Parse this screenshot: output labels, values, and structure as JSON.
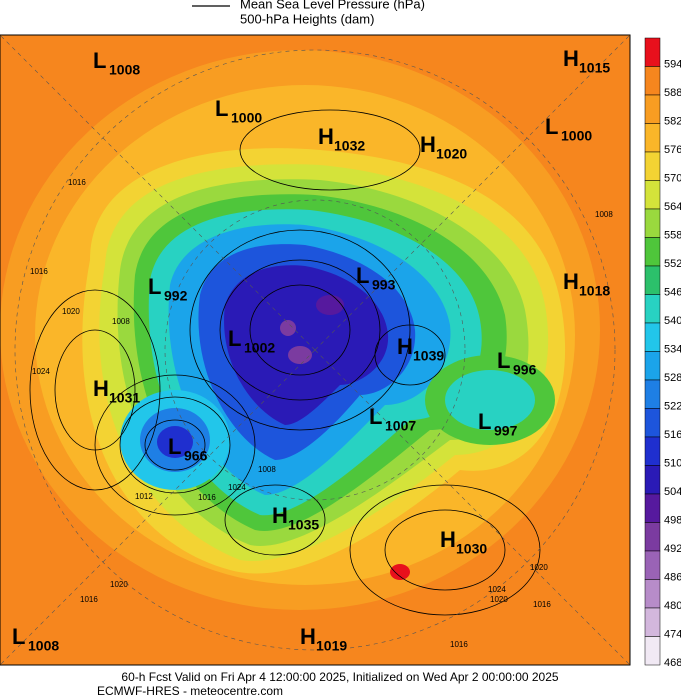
{
  "legend": [
    "Mean Sea Level Pressure (hPa)",
    "500-hPa Heights (dam)"
  ],
  "colorbar": {
    "ticks": [
      594,
      588,
      582,
      576,
      570,
      564,
      558,
      552,
      546,
      540,
      534,
      528,
      522,
      516,
      510,
      504,
      498,
      492,
      486,
      480,
      474,
      468
    ],
    "colors": [
      "#e8101c",
      "#f6861e",
      "#f89d22",
      "#fab629",
      "#f3d333",
      "#d4e33a",
      "#9ad93e",
      "#4fc63b",
      "#2cc06b",
      "#28d2c2",
      "#22c6ea",
      "#1ba4ea",
      "#1e7fe5",
      "#1d55dc",
      "#1f2fcf",
      "#2a1ab6",
      "#56199e",
      "#7b3ba0",
      "#9a63b6",
      "#b78cc9",
      "#d3b7dd",
      "#f1e9f4"
    ]
  },
  "centers": [
    {
      "letter": "L",
      "value": "1008"
    },
    {
      "letter": "H",
      "value": "1015"
    },
    {
      "letter": "L",
      "value": "1000"
    },
    {
      "letter": "H",
      "value": "1032"
    },
    {
      "letter": "H",
      "value": "1020"
    },
    {
      "letter": "L",
      "value": "1000"
    },
    {
      "letter": "L",
      "value": "992"
    },
    {
      "letter": "L",
      "value": "993"
    },
    {
      "letter": "H",
      "value": "1018"
    },
    {
      "letter": "L",
      "value": "1002"
    },
    {
      "letter": "H",
      "value": "1039"
    },
    {
      "letter": "L",
      "value": "996"
    },
    {
      "letter": "H",
      "value": "1031"
    },
    {
      "letter": "L",
      "value": "1007"
    },
    {
      "letter": "L",
      "value": "997"
    },
    {
      "letter": "L",
      "value": "966"
    },
    {
      "letter": "H",
      "value": "1035"
    },
    {
      "letter": "H",
      "value": "1030"
    },
    {
      "letter": "L",
      "value": "1008"
    },
    {
      "letter": "H",
      "value": "1019"
    }
  ],
  "contour_labels": [
    "1016",
    "1016",
    "1020",
    "1024",
    "1008",
    "1008",
    "1012",
    "1016",
    "1024",
    "1020",
    "1016",
    "1020",
    "1024",
    "1020",
    "1016",
    "1016",
    "1008"
  ],
  "footer": [
    "60-h Fcst Valid on Fri Apr  4 12:00:00 2025, Initialized on Wed Apr  2 00:00:00 2025",
    "ECMWF-HRES  - meteocentre.com"
  ]
}
